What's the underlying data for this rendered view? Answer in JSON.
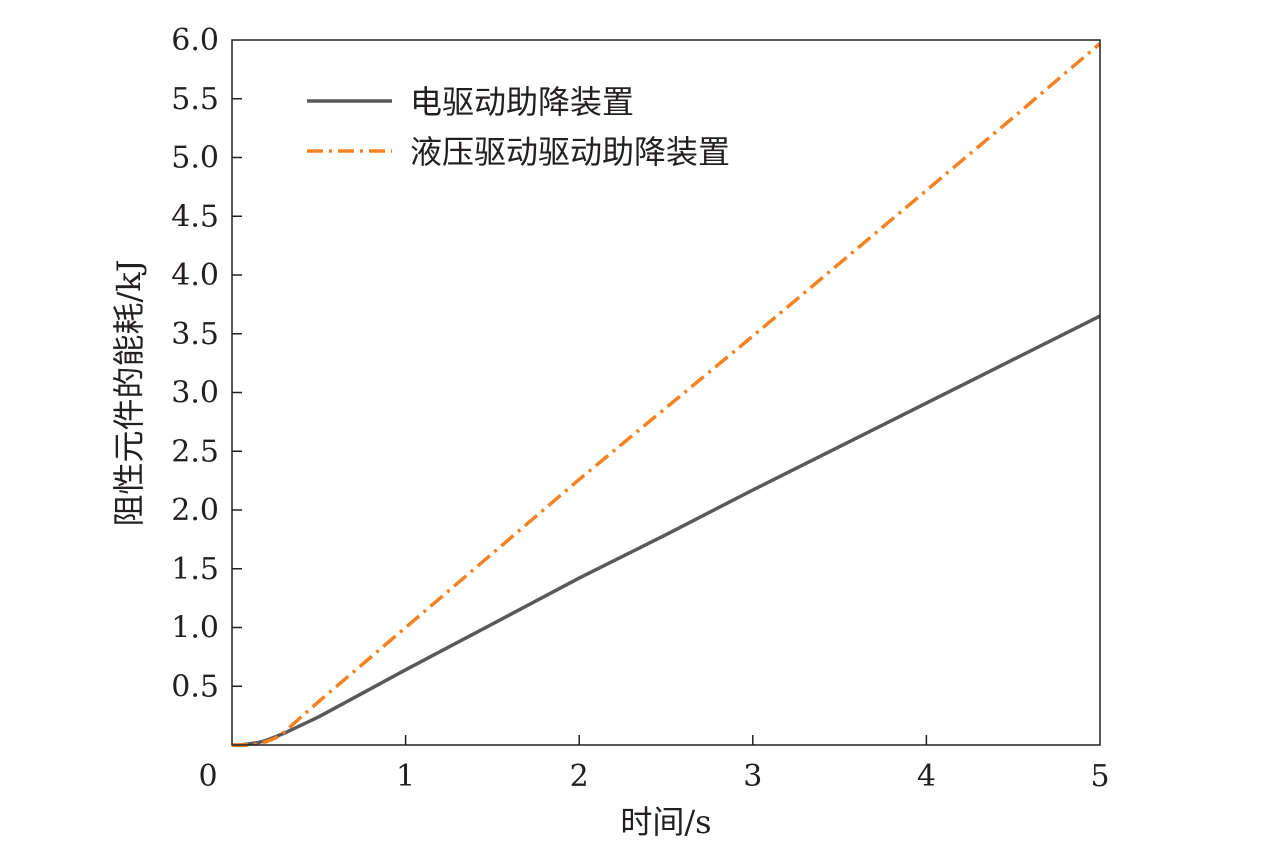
{
  "chart_data": {
    "type": "line",
    "xlabel": "时间/s",
    "ylabel": "阻性元件的能耗/kJ",
    "xlim": [
      0,
      5
    ],
    "ylim": [
      0,
      6.0
    ],
    "x_ticks": [
      "0",
      "1",
      "2",
      "3",
      "4",
      "5"
    ],
    "y_ticks": [
      "0.5",
      "1.0",
      "1.5",
      "2.0",
      "2.5",
      "3.0",
      "3.5",
      "4.0",
      "4.5",
      "5.0",
      "5.5",
      "6.0"
    ],
    "grid": false,
    "legend_position": "top-left",
    "series": [
      {
        "name": "电驱动助降装置",
        "color": "#58595b",
        "style": "solid",
        "x": [
          0,
          0.05,
          0.1,
          0.15,
          0.2,
          0.25,
          0.3,
          0.5,
          1,
          1.5,
          2,
          2.5,
          3,
          3.5,
          4,
          4.5,
          5
        ],
        "y": [
          0,
          0.0,
          0.01,
          0.02,
          0.04,
          0.07,
          0.1,
          0.24,
          0.64,
          1.03,
          1.42,
          1.79,
          2.17,
          2.54,
          2.91,
          3.28,
          3.65
        ]
      },
      {
        "name": "液压驱动驱动助降装置",
        "color": "#f58220",
        "style": "dashdot",
        "x": [
          0,
          0.05,
          0.1,
          0.15,
          0.2,
          0.25,
          0.3,
          0.5,
          1,
          1.5,
          2,
          2.5,
          3,
          3.5,
          4,
          4.5,
          5
        ],
        "y": [
          0,
          0.0,
          0.0,
          0.01,
          0.03,
          0.06,
          0.11,
          0.37,
          1.0,
          1.63,
          2.26,
          2.87,
          3.48,
          4.1,
          4.72,
          5.34,
          5.97
        ]
      }
    ]
  }
}
